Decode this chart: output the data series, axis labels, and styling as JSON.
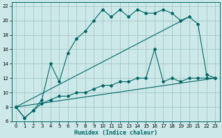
{
  "xlabel": "Humidex (Indice chaleur)",
  "bg_color": "#cce8e8",
  "grid_color": "#aacccc",
  "line_color": "#006666",
  "xlim": [
    -0.5,
    23.5
  ],
  "ylim": [
    6,
    22.5
  ],
  "xticks": [
    0,
    1,
    2,
    3,
    4,
    5,
    6,
    7,
    8,
    9,
    10,
    11,
    12,
    13,
    14,
    15,
    16,
    17,
    18,
    19,
    20,
    21,
    22,
    23
  ],
  "yticks": [
    6,
    8,
    10,
    12,
    14,
    16,
    18,
    20,
    22
  ],
  "line1_x": [
    0,
    1,
    2,
    3,
    4,
    5,
    6,
    7,
    8,
    9,
    10,
    11,
    12,
    13,
    14,
    15,
    16,
    17,
    18,
    19,
    20,
    21,
    22,
    23
  ],
  "line1_y": [
    8.0,
    6.5,
    7.5,
    9.0,
    14.0,
    11.5,
    15.5,
    17.5,
    18.5,
    20.0,
    21.5,
    20.5,
    21.5,
    20.5,
    21.5,
    21.0,
    21.0,
    21.5,
    21.0,
    20.0,
    20.5,
    19.5,
    12.5,
    12.0
  ],
  "line2_x": [
    0,
    1,
    2,
    3,
    4,
    5,
    6,
    7,
    8,
    9,
    10,
    11,
    12,
    13,
    14,
    15,
    16,
    17,
    18,
    19,
    20,
    21,
    22,
    23
  ],
  "line2_y": [
    8.0,
    6.5,
    7.5,
    8.5,
    9.0,
    9.5,
    9.5,
    10.0,
    10.0,
    10.5,
    11.0,
    11.0,
    11.5,
    11.5,
    12.0,
    12.0,
    16.0,
    11.5,
    12.0,
    11.5,
    12.0,
    12.0,
    12.0,
    12.0
  ],
  "line3_x": [
    0,
    20
  ],
  "line3_y": [
    8.0,
    20.5
  ],
  "line4_x": [
    0,
    23
  ],
  "line4_y": [
    8.0,
    12.0
  ]
}
